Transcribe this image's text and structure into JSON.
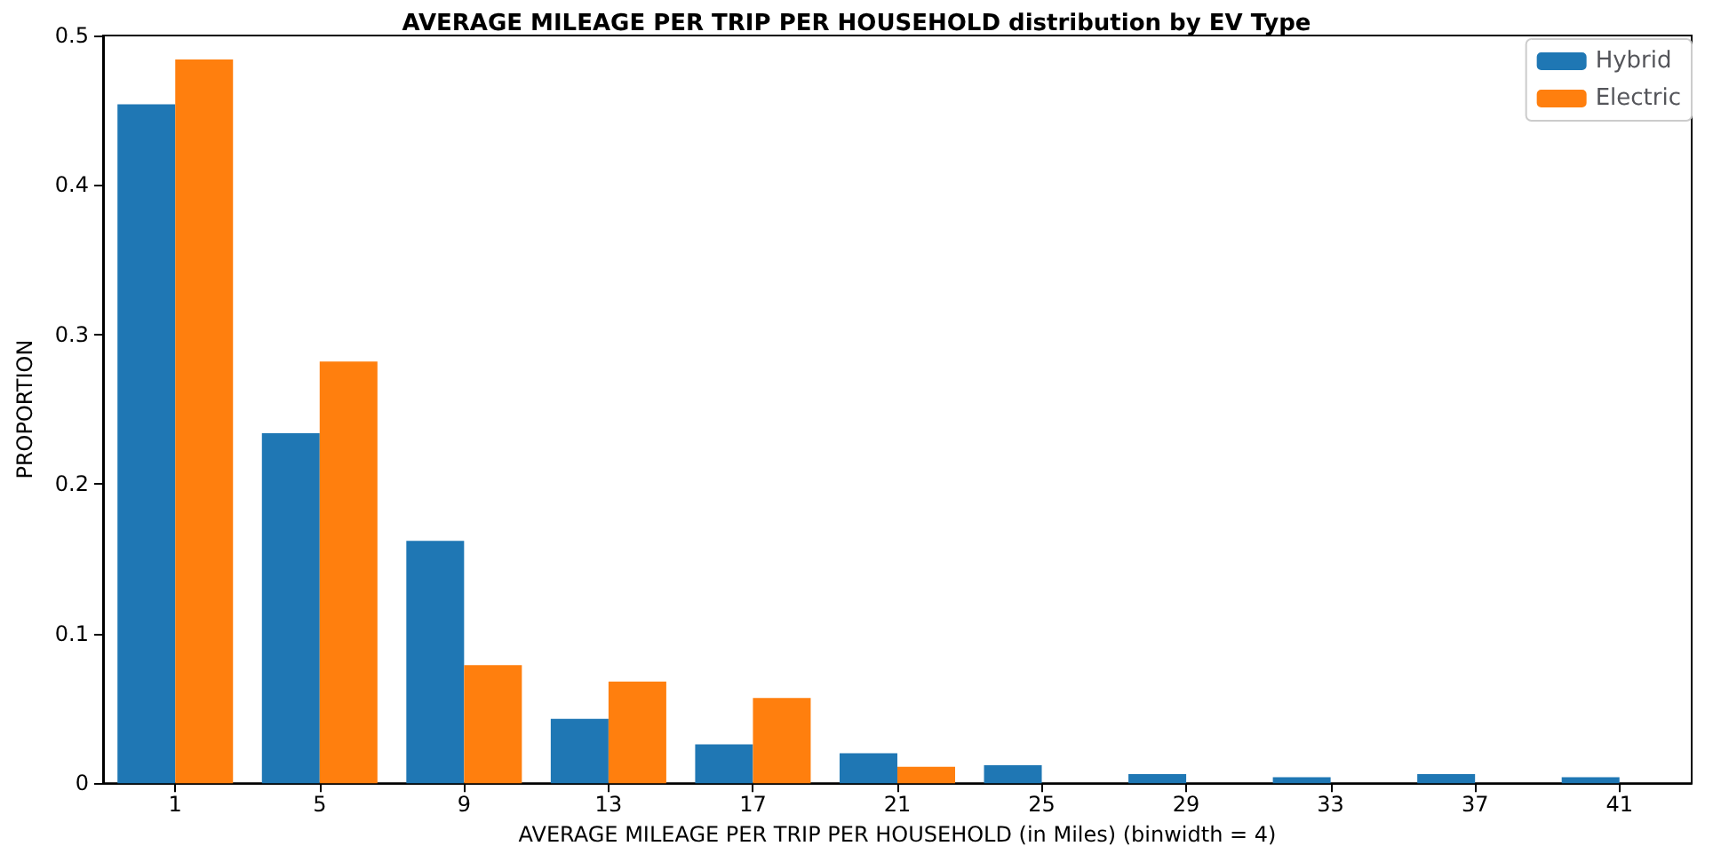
{
  "chart_data": {
    "type": "bar",
    "title": "AVERAGE MILEAGE PER TRIP PER HOUSEHOLD distribution by EV Type",
    "xlabel": "AVERAGE MILEAGE PER TRIP PER HOUSEHOLD (in Miles) (binwidth = 4)",
    "ylabel": "PROPORTION",
    "categories": [
      "1",
      "5",
      "9",
      "13",
      "17",
      "21",
      "25",
      "29",
      "33",
      "37",
      "41"
    ],
    "series": [
      {
        "name": "Hybrid",
        "color": "#1f77b4",
        "values": [
          0.454,
          0.234,
          0.162,
          0.043,
          0.026,
          0.02,
          0.012,
          0.006,
          0.004,
          0.006,
          0.004
        ]
      },
      {
        "name": "Electric",
        "color": "#ff7f0e",
        "values": [
          0.484,
          0.282,
          0.079,
          0.068,
          0.057,
          0.011,
          0,
          0,
          0,
          0,
          0
        ]
      }
    ],
    "ylim": [
      0,
      0.5
    ],
    "yticks": [
      0,
      0.1,
      0.2,
      0.3,
      0.4,
      0.5
    ],
    "grid": false,
    "legend": "top right"
  }
}
